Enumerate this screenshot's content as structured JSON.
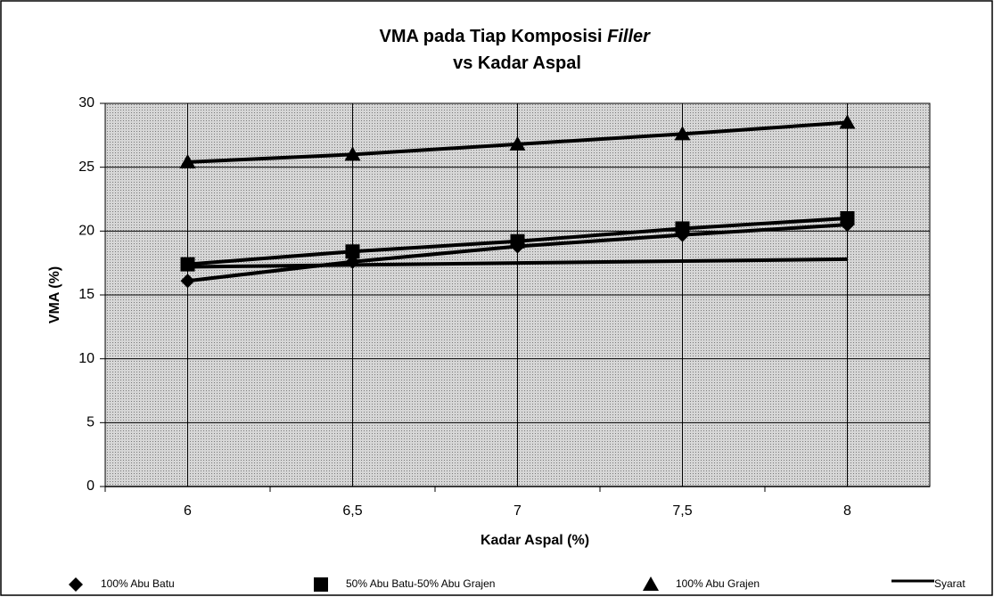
{
  "chart_data": {
    "type": "line",
    "title": [
      "VMA pada Tiap Komposisi ",
      "Filler",
      "vs Kadar Aspal"
    ],
    "x_label": "Kadar Aspal (%)",
    "y_label": "VMA (%)",
    "categories": [
      "6",
      "6,5",
      "7",
      "7,5",
      "8"
    ],
    "series": [
      {
        "name": "100% Abu Batu",
        "color": "#000000",
        "marker": "diamond",
        "values": [
          16.1,
          17.6,
          18.8,
          19.7,
          20.5
        ]
      },
      {
        "name": "50% Abu Batu-50% Abu Grajen",
        "color": "#000000",
        "marker": "square",
        "values": [
          17.4,
          18.4,
          19.2,
          20.2,
          21.0
        ]
      },
      {
        "name": "100% Abu Grajen",
        "color": "#000000",
        "marker": "triangle",
        "values": [
          25.4,
          26.0,
          26.8,
          27.6,
          28.5
        ]
      },
      {
        "name": "Syarat",
        "color": "#000000",
        "marker": "none",
        "values": [
          17.2,
          17.35,
          17.5,
          17.65,
          17.8
        ]
      }
    ],
    "ylim": [
      0,
      30
    ],
    "yticks": [
      0,
      5,
      10,
      15,
      20,
      25,
      30
    ],
    "grid": true,
    "legend": "bottom"
  }
}
